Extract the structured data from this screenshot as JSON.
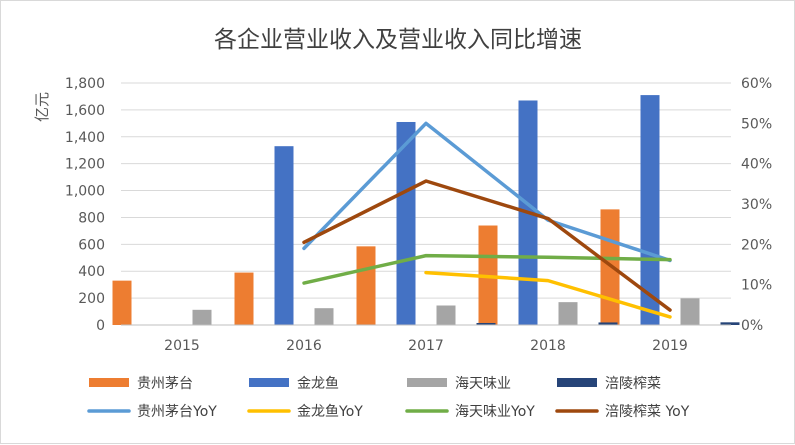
{
  "chart_data": {
    "type": "bar+line",
    "title": "各企业营业收入及营业收入同比增速",
    "ylabel": "亿元",
    "y2label": "",
    "categories": [
      "2015",
      "2016",
      "2017",
      "2018",
      "2019"
    ],
    "ylim": [
      0,
      1800
    ],
    "yticks": [
      0,
      200,
      400,
      600,
      800,
      1000,
      1200,
      1400,
      1600,
      1800
    ],
    "ytick_labels": [
      "0",
      "200",
      "400",
      "600",
      "800",
      "1,000",
      "1,200",
      "1,400",
      "1,600",
      "1,800"
    ],
    "y2lim": [
      0,
      0.6
    ],
    "y2ticks": [
      0,
      0.1,
      0.2,
      0.3,
      0.4,
      0.5,
      0.6
    ],
    "y2tick_labels": [
      "0%",
      "10%",
      "20%",
      "30%",
      "40%",
      "50%",
      "60%"
    ],
    "grid": "horizontal",
    "legend_position": "bottom",
    "bar_series": [
      {
        "name": "贵州茅台",
        "color": "#ed7d31",
        "values": [
          330,
          390,
          585,
          740,
          860
        ]
      },
      {
        "name": "金龙鱼",
        "color": "#4472c4",
        "values": [
          null,
          1330,
          1510,
          1670,
          1710
        ]
      },
      {
        "name": "海天味业",
        "color": "#a5a5a5",
        "values": [
          113,
          125,
          145,
          170,
          198
        ]
      },
      {
        "name": "涪陵榨菜",
        "color": "#264478",
        "values": [
          null,
          null,
          15,
          19,
          20
        ]
      }
    ],
    "line_series": [
      {
        "name": "贵州茅台YoY",
        "color": "#5b9bd5",
        "values": [
          null,
          0.19,
          0.5,
          0.26,
          0.16
        ]
      },
      {
        "name": "金龙鱼YoY",
        "color": "#ffc000",
        "values": [
          null,
          null,
          0.13,
          0.11,
          0.02
        ]
      },
      {
        "name": "海天味业YoY",
        "color": "#70ad47",
        "values": [
          null,
          0.104,
          0.172,
          0.168,
          0.162
        ]
      },
      {
        "name": "涪陵榨菜 YoY",
        "color": "#9e480e",
        "values": [
          null,
          0.205,
          0.357,
          0.264,
          0.037
        ]
      }
    ]
  }
}
